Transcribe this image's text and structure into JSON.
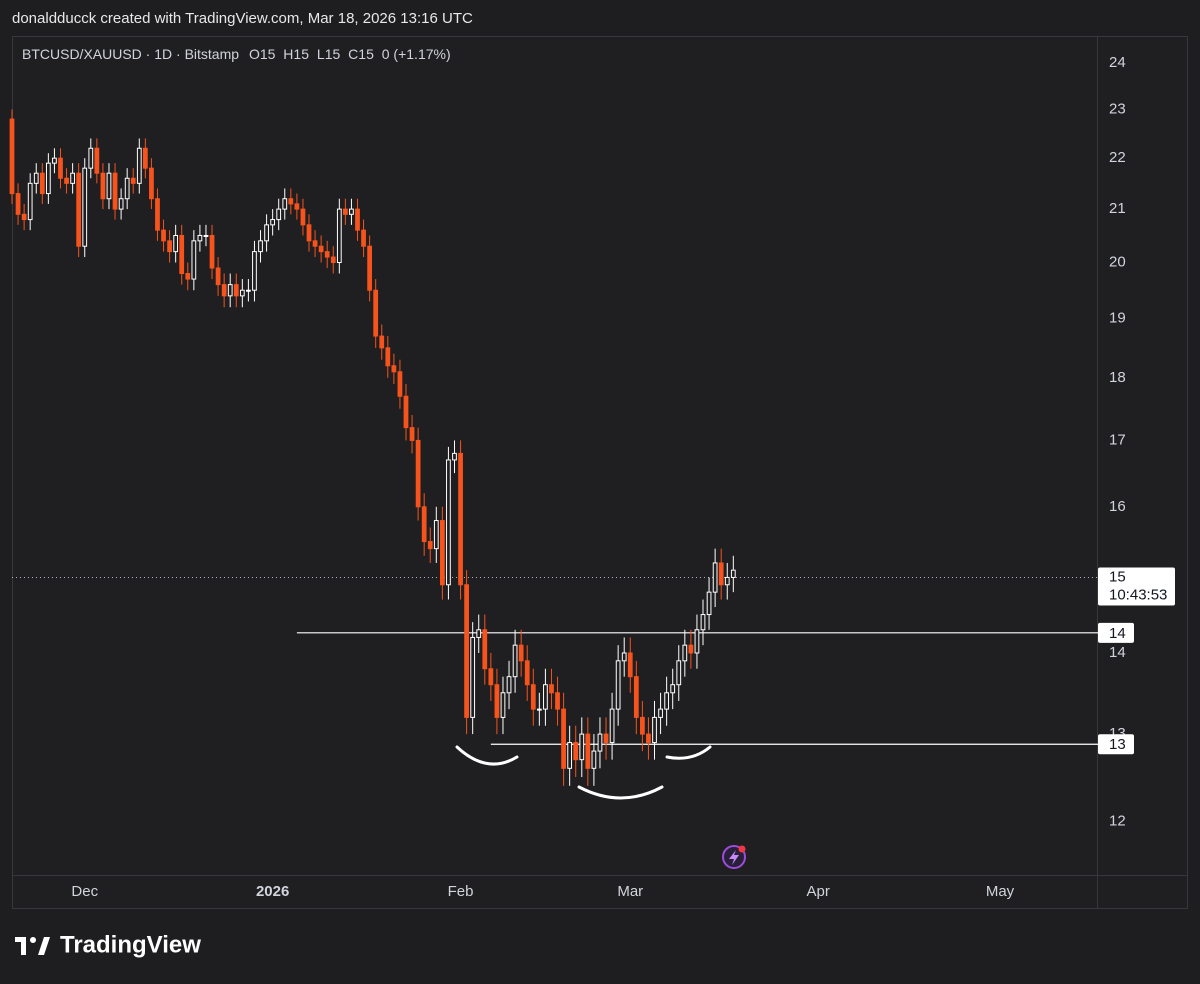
{
  "header": {
    "text": "donaldducck created with TradingView.com, Mar 18, 2026 13:16 UTC"
  },
  "footer": {
    "brand": "TradingView"
  },
  "chart_data": {
    "type": "candlestick",
    "legend": {
      "symbol": "BTCUSD/XAUUSD · 1D · Bitstamp",
      "ohlc": [
        {
          "key": "O",
          "value": 15
        },
        {
          "key": "H",
          "value": 15
        },
        {
          "key": "L",
          "value": 15
        },
        {
          "key": "C",
          "value": 15
        }
      ],
      "change": "0 (+1.17%)"
    },
    "up_color": "#ffffff",
    "down_color": "#f7531c",
    "log_scale": true,
    "xlim": [
      -12,
      167
    ],
    "xticks": [
      {
        "value": 0,
        "label": "Dec"
      },
      {
        "value": 31,
        "label": "2026"
      },
      {
        "value": 62,
        "label": "Feb"
      },
      {
        "value": 90,
        "label": "Mar"
      },
      {
        "value": 121,
        "label": "Apr"
      },
      {
        "value": 151,
        "label": "May"
      }
    ],
    "ylim": [
      11.43,
      24.62
    ],
    "yticks": [
      12,
      13,
      14,
      15,
      16,
      17,
      18,
      19,
      20,
      21,
      22,
      23,
      24
    ],
    "x": [
      -12,
      -11,
      -10,
      -9,
      -8,
      -7,
      -6,
      -5,
      -4,
      -3,
      -2,
      -1,
      0,
      1,
      2,
      3,
      4,
      5,
      6,
      7,
      8,
      9,
      10,
      11,
      12,
      13,
      14,
      15,
      16,
      17,
      18,
      19,
      20,
      21,
      22,
      23,
      24,
      25,
      26,
      27,
      28,
      29,
      30,
      31,
      32,
      33,
      34,
      35,
      36,
      37,
      38,
      39,
      40,
      41,
      42,
      43,
      44,
      45,
      46,
      47,
      48,
      49,
      50,
      51,
      52,
      53,
      54,
      55,
      56,
      57,
      58,
      59,
      60,
      61,
      62,
      63,
      64,
      65,
      66,
      67,
      68,
      69,
      70,
      71,
      72,
      73,
      74,
      75,
      76,
      77,
      78,
      79,
      80,
      81,
      82,
      83,
      84,
      85,
      86,
      87,
      88,
      89,
      90,
      91,
      92,
      93,
      94,
      95,
      96,
      97,
      98,
      99,
      100,
      101,
      102,
      103,
      104,
      105,
      106,
      107
    ],
    "open": [
      22.8,
      21.3,
      20.9,
      20.8,
      21.5,
      21.7,
      21.3,
      21.9,
      22.0,
      21.6,
      21.5,
      21.7,
      20.3,
      21.8,
      22.2,
      21.7,
      21.2,
      21.7,
      21.0,
      21.2,
      21.6,
      21.5,
      22.2,
      21.8,
      21.2,
      20.6,
      20.4,
      20.2,
      20.5,
      19.8,
      19.7,
      20.4,
      20.5,
      20.5,
      19.9,
      19.6,
      19.4,
      19.6,
      19.4,
      19.5,
      19.5,
      20.2,
      20.4,
      20.7,
      20.8,
      21.0,
      21.2,
      21.1,
      21.0,
      20.7,
      20.4,
      20.3,
      20.2,
      20.1,
      20.0,
      21.0,
      20.9,
      21.0,
      20.6,
      20.3,
      19.5,
      18.7,
      18.5,
      18.2,
      18.1,
      17.7,
      17.2,
      17.0,
      16.0,
      15.5,
      15.4,
      15.8,
      14.9,
      16.7,
      16.8,
      14.9,
      13.2,
      14.2,
      14.3,
      13.8,
      13.6,
      13.2,
      13.5,
      13.7,
      14.1,
      13.9,
      13.6,
      13.3,
      13.3,
      13.6,
      13.5,
      13.3,
      12.6,
      12.9,
      12.7,
      13.0,
      12.6,
      12.8,
      13.0,
      12.9,
      13.3,
      13.9,
      14.0,
      13.7,
      13.2,
      13.0,
      12.9,
      13.2,
      13.3,
      13.5,
      13.6,
      13.9,
      14.1,
      14.0,
      14.3,
      14.5,
      14.8,
      15.2,
      14.9,
      15.0
    ],
    "high": [
      23.0,
      21.5,
      21.1,
      21.7,
      21.9,
      21.9,
      22.1,
      22.2,
      22.2,
      21.8,
      21.9,
      21.9,
      22.0,
      22.4,
      22.4,
      21.9,
      21.9,
      21.9,
      21.4,
      21.8,
      21.8,
      22.4,
      22.4,
      22.0,
      21.4,
      20.8,
      20.6,
      20.7,
      20.7,
      20.0,
      20.6,
      20.7,
      20.7,
      20.7,
      20.1,
      19.8,
      19.8,
      19.8,
      19.7,
      19.7,
      20.4,
      20.6,
      20.9,
      21.0,
      21.2,
      21.4,
      21.4,
      21.3,
      21.2,
      20.9,
      20.6,
      20.5,
      20.4,
      20.3,
      21.2,
      21.2,
      21.2,
      21.2,
      20.8,
      20.5,
      19.7,
      18.9,
      18.7,
      18.4,
      18.3,
      17.9,
      17.4,
      17.2,
      16.2,
      15.7,
      16.0,
      16.0,
      16.9,
      17.0,
      17.0,
      15.1,
      14.4,
      14.5,
      14.5,
      14.0,
      13.8,
      13.7,
      13.9,
      14.3,
      14.3,
      14.1,
      13.8,
      13.5,
      13.8,
      13.8,
      13.7,
      13.5,
      13.1,
      13.1,
      13.2,
      13.2,
      13.0,
      13.2,
      13.2,
      13.5,
      14.1,
      14.2,
      14.2,
      13.9,
      13.4,
      13.2,
      13.4,
      13.5,
      13.7,
      13.8,
      14.1,
      14.3,
      14.3,
      14.5,
      14.7,
      15.0,
      15.4,
      15.4,
      15.2,
      15.3
    ],
    "low": [
      21.1,
      20.7,
      20.6,
      20.6,
      21.3,
      21.1,
      21.1,
      21.7,
      21.4,
      21.3,
      21.3,
      20.1,
      20.1,
      21.6,
      21.5,
      21.0,
      21.0,
      20.8,
      20.8,
      21.0,
      21.3,
      21.3,
      21.6,
      21.0,
      20.4,
      20.2,
      20.0,
      20.0,
      19.6,
      19.5,
      19.5,
      20.2,
      20.3,
      19.7,
      19.4,
      19.2,
      19.2,
      19.2,
      19.2,
      19.3,
      19.3,
      20.0,
      20.2,
      20.5,
      20.6,
      20.8,
      20.9,
      20.8,
      20.5,
      20.2,
      20.1,
      20.0,
      19.9,
      19.8,
      19.8,
      20.7,
      20.7,
      20.4,
      20.1,
      19.3,
      18.5,
      18.3,
      18.0,
      17.9,
      17.5,
      17.0,
      16.8,
      15.8,
      15.3,
      15.2,
      15.2,
      14.7,
      14.7,
      16.5,
      14.7,
      13.0,
      13.0,
      14.0,
      13.6,
      13.4,
      13.0,
      13.0,
      13.3,
      13.5,
      13.7,
      13.4,
      13.1,
      13.1,
      13.1,
      13.3,
      13.1,
      12.4,
      12.4,
      12.5,
      12.5,
      12.4,
      12.4,
      12.6,
      12.7,
      12.7,
      13.1,
      13.7,
      13.5,
      13.0,
      12.8,
      12.7,
      12.7,
      13.0,
      13.1,
      13.3,
      13.4,
      13.7,
      13.8,
      13.8,
      14.1,
      14.3,
      14.6,
      14.7,
      14.7,
      14.8
    ],
    "close": [
      21.3,
      20.9,
      20.8,
      21.5,
      21.7,
      21.3,
      21.9,
      22.0,
      21.6,
      21.5,
      21.7,
      20.3,
      21.8,
      22.2,
      21.7,
      21.2,
      21.7,
      21.0,
      21.2,
      21.6,
      21.5,
      22.2,
      21.8,
      21.2,
      20.6,
      20.4,
      20.2,
      20.5,
      19.8,
      19.7,
      20.4,
      20.5,
      20.5,
      19.9,
      19.6,
      19.4,
      19.6,
      19.4,
      19.5,
      19.5,
      20.2,
      20.4,
      20.7,
      20.8,
      21.0,
      21.2,
      21.1,
      21.0,
      20.7,
      20.4,
      20.3,
      20.2,
      20.1,
      20.0,
      21.0,
      20.9,
      21.0,
      20.6,
      20.3,
      19.5,
      18.7,
      18.5,
      18.2,
      18.1,
      17.7,
      17.2,
      17.0,
      16.0,
      15.5,
      15.4,
      15.8,
      14.9,
      16.7,
      16.8,
      14.9,
      13.2,
      14.2,
      14.3,
      13.8,
      13.6,
      13.2,
      13.5,
      13.7,
      14.1,
      13.9,
      13.6,
      13.3,
      13.3,
      13.6,
      13.5,
      13.3,
      12.6,
      12.9,
      12.7,
      13.0,
      12.6,
      12.8,
      13.0,
      12.9,
      13.3,
      13.9,
      14.0,
      13.7,
      13.2,
      13.0,
      12.9,
      13.2,
      13.3,
      13.5,
      13.6,
      13.9,
      14.1,
      14.0,
      14.3,
      14.5,
      14.8,
      15.2,
      14.9,
      15.0,
      15.1
    ],
    "levels": [
      {
        "value": 14.26,
        "label": "14",
        "from_x": 35
      },
      {
        "value": 12.88,
        "label": "13",
        "from_x": 67
      }
    ],
    "last_price": {
      "value": 15,
      "countdown": "10:43:53"
    }
  }
}
